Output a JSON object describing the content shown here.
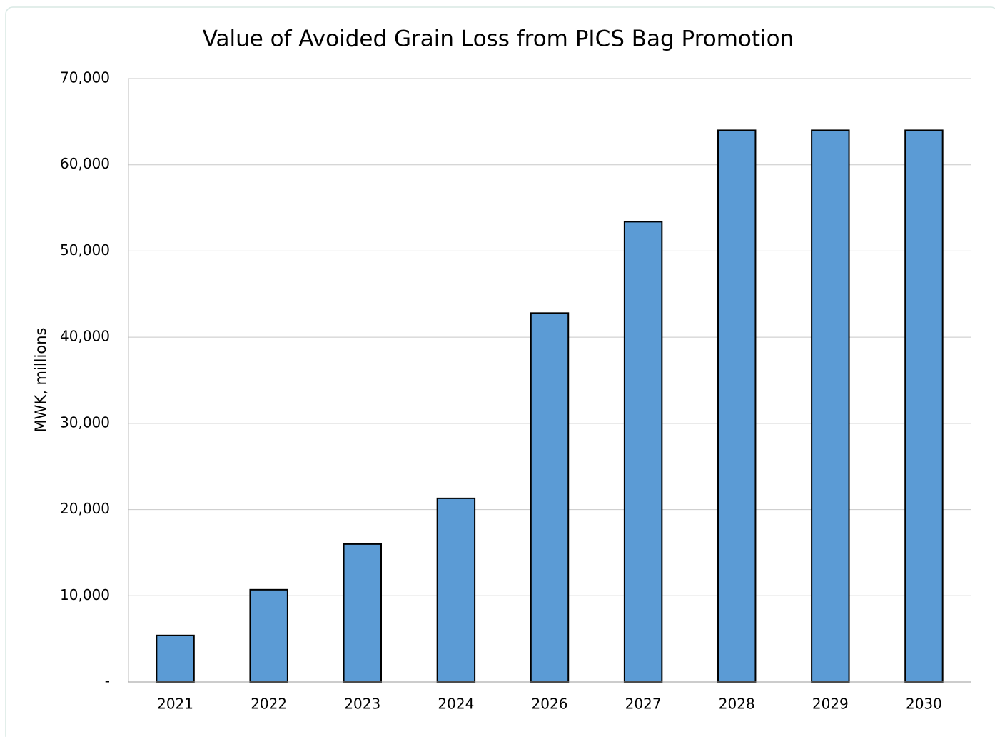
{
  "chart_data": {
    "type": "bar",
    "title": "Value of Avoided Grain Loss from PICS Bag Promotion",
    "y_label": "MWK, millions",
    "categories": [
      "2021",
      "2022",
      "2023",
      "2024",
      "2026",
      "2027",
      "2028",
      "2029",
      "2030"
    ],
    "values": [
      5400,
      10700,
      16000,
      21300,
      42800,
      53400,
      64000,
      64000,
      64000
    ],
    "color": "#5b9bd5",
    "ylim": [
      0,
      70000
    ],
    "yticks": [
      {
        "value": 0,
        "label": "-"
      },
      {
        "value": 10000,
        "label": "10,000"
      },
      {
        "value": 20000,
        "label": "20,000"
      },
      {
        "value": 30000,
        "label": "30,000"
      },
      {
        "value": 40000,
        "label": "40,000"
      },
      {
        "value": 50000,
        "label": "50,000"
      },
      {
        "value": 60000,
        "label": "60,000"
      },
      {
        "value": 70000,
        "label": "70,000"
      }
    ],
    "grid": true
  }
}
